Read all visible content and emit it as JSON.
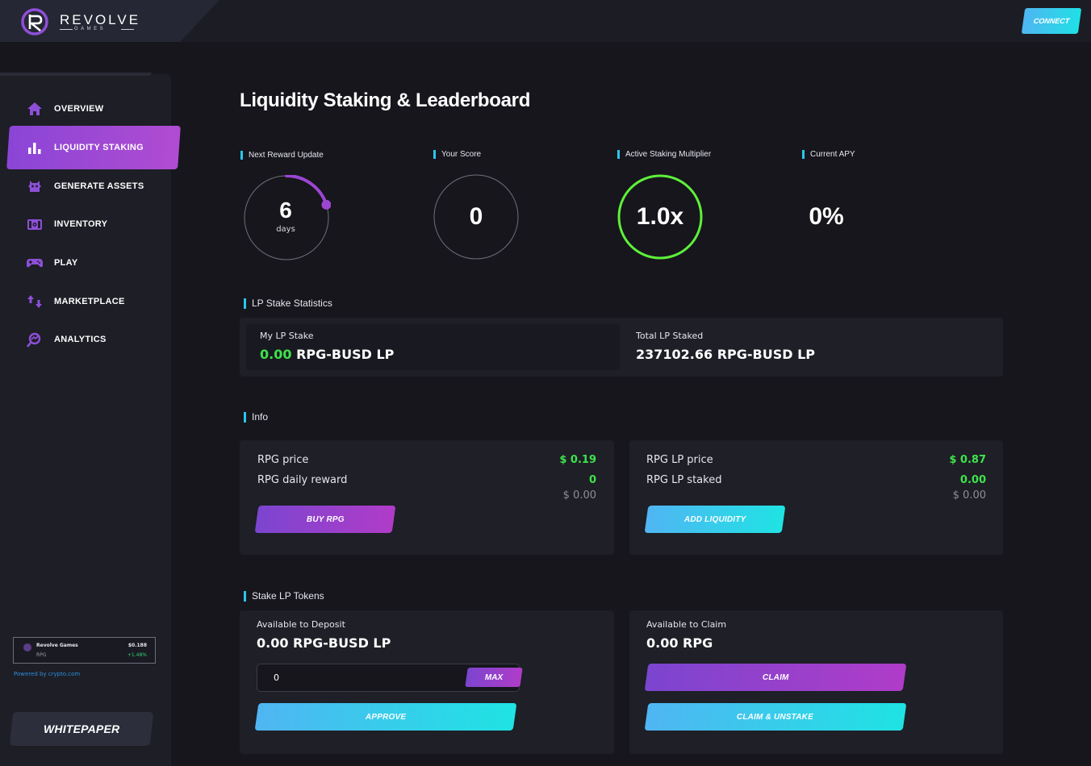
{
  "brand": {
    "name": "REVOLVE",
    "sub": "GAMES"
  },
  "header": {
    "connect_label": "CONNECT"
  },
  "sidebar": {
    "items": [
      {
        "label": "OVERVIEW",
        "icon": "home-icon"
      },
      {
        "label": "LIQUIDITY STAKING",
        "icon": "bar-chart-icon",
        "active": true
      },
      {
        "label": "GENERATE ASSETS",
        "icon": "robot-icon"
      },
      {
        "label": "INVENTORY",
        "icon": "chest-icon"
      },
      {
        "label": "PLAY",
        "icon": "gamepad-icon"
      },
      {
        "label": "MARKETPLACE",
        "icon": "exchange-arrows-icon"
      },
      {
        "label": "ANALYTICS",
        "icon": "analytics-icon"
      }
    ],
    "ticker": {
      "name": "Revolve Games",
      "symbol": "RPG",
      "price": "$0.188",
      "change": "+1.48%"
    },
    "powered_by": "Powered by  crypto.com",
    "whitepaper_label": "WHITEPAPER"
  },
  "main": {
    "title": "Liquidity Staking & Leaderboard",
    "stats": {
      "next_reward": {
        "label": "Next Reward Update",
        "value": "6",
        "unit": "days",
        "progress": 0.2
      },
      "your_score": {
        "label": "Your Score",
        "value": "0"
      },
      "multiplier": {
        "label": "Active Staking Multiplier",
        "value": "1.0x"
      },
      "apy": {
        "label": "Current APY",
        "value": "0%"
      }
    },
    "lp_stats": {
      "section": "LP Stake Statistics",
      "my_label": "My LP Stake",
      "my_amount": "0.00",
      "my_unit": "RPG-BUSD LP",
      "total_label": "Total LP Staked",
      "total_value": "237102.66 RPG-BUSD LP"
    },
    "info": {
      "section": "Info",
      "left": {
        "price_label": "RPG price",
        "price_value": "$ 0.19",
        "reward_label": "RPG daily reward",
        "reward_value": "0",
        "reward_usd": "$ 0.00",
        "button": "BUY RPG"
      },
      "right": {
        "price_label": "RPG LP price",
        "price_value": "$ 0.87",
        "staked_label": "RPG LP staked",
        "staked_value": "0.00",
        "staked_usd": "$ 0.00",
        "button": "ADD LIQUIDITY"
      }
    },
    "stake": {
      "section": "Stake LP Tokens",
      "deposit_label": "Available to Deposit",
      "deposit_value": "0.00 RPG-BUSD LP",
      "input_value": "0",
      "max_label": "MAX",
      "approve_label": "APPROVE",
      "claim_label_title": "Available to Claim",
      "claim_value": "0.00 RPG",
      "claim_button": "CLAIM",
      "claim_unstake_button": "CLAIM & UNSTAKE"
    }
  },
  "colors": {
    "accent_cyan": "#29c7ee",
    "accent_purple": "#9a45d4",
    "green": "#3ee34a",
    "ring_multiplier": "#5ef03a"
  }
}
